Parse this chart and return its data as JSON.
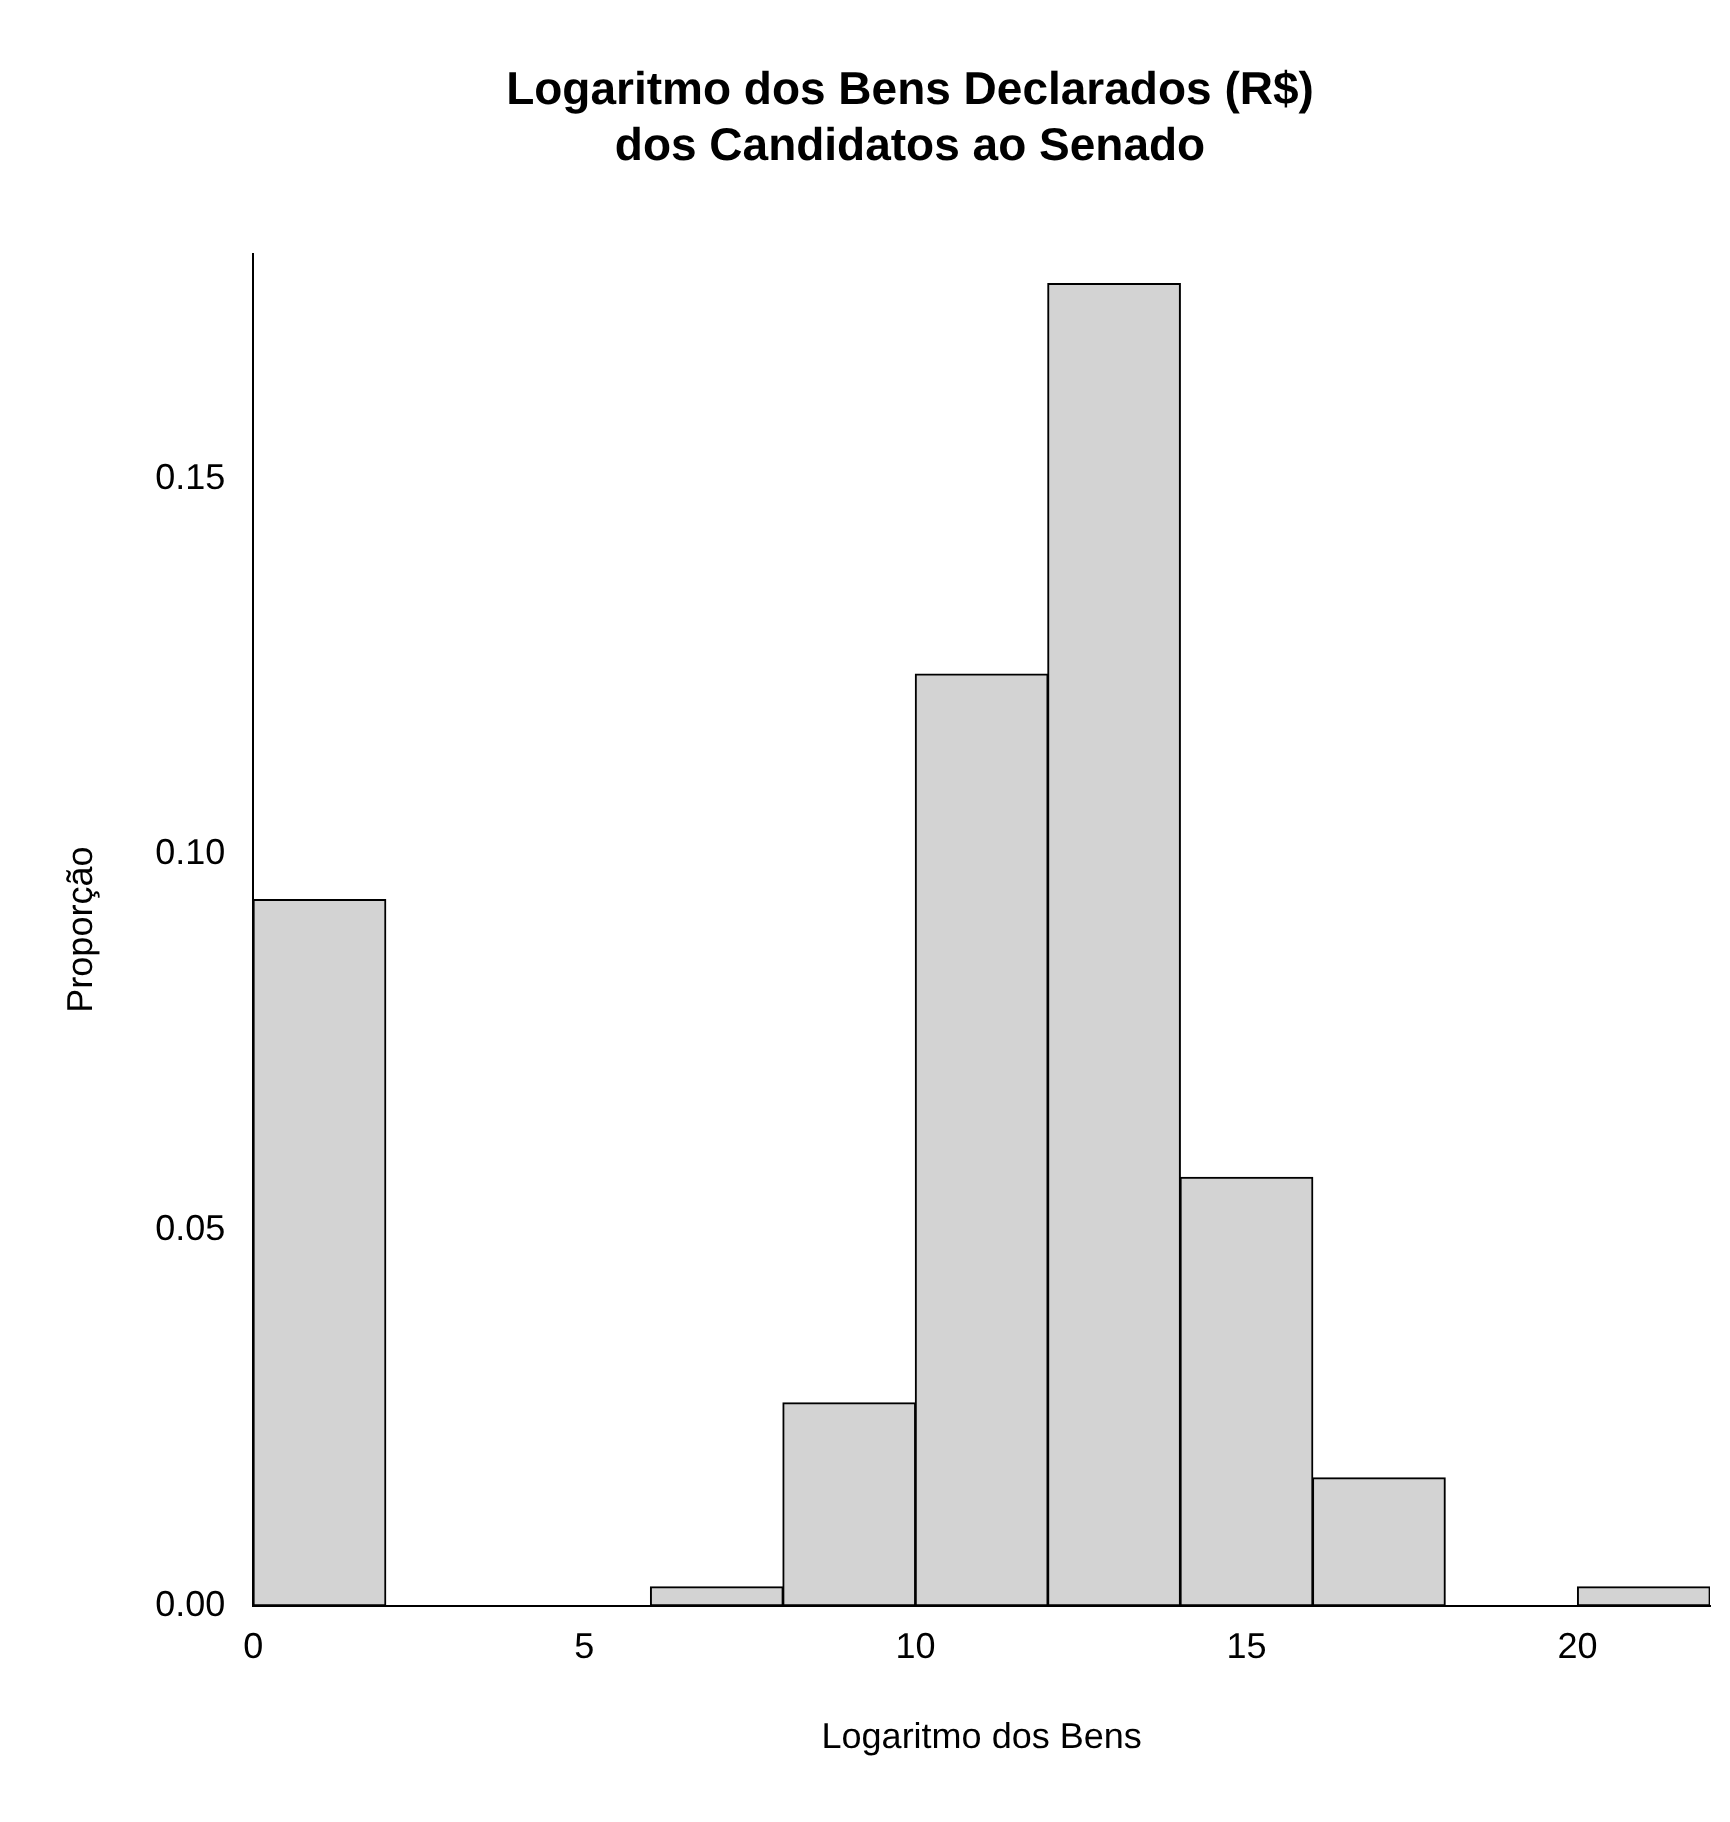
{
  "chart_data": {
    "type": "histogram",
    "title": "Logaritmo dos Bens Declarados (R$) dos Candidatos ao Senado",
    "xlabel": "Logaritmo dos Bens",
    "ylabel": "Proporção",
    "bins": [
      0,
      2,
      4,
      6,
      8,
      10,
      12,
      14,
      16,
      18,
      20,
      22
    ],
    "values": [
      0.094,
      0,
      0,
      0.0025,
      0.027,
      0.124,
      0.176,
      0.057,
      0.017,
      0,
      0.0025
    ],
    "color": "#d3d3d3",
    "xlim": [
      0,
      22
    ],
    "xticks": [
      0,
      5,
      10,
      15,
      20
    ],
    "ylim": [
      0,
      0.18
    ],
    "yticks": [
      {
        "value": 0,
        "label": "0.00"
      },
      {
        "value": 0.05,
        "label": "0.05"
      },
      {
        "value": 0.1,
        "label": "0.10"
      },
      {
        "value": 0.15,
        "label": "0.15"
      }
    ],
    "grid": false,
    "legend": false
  }
}
